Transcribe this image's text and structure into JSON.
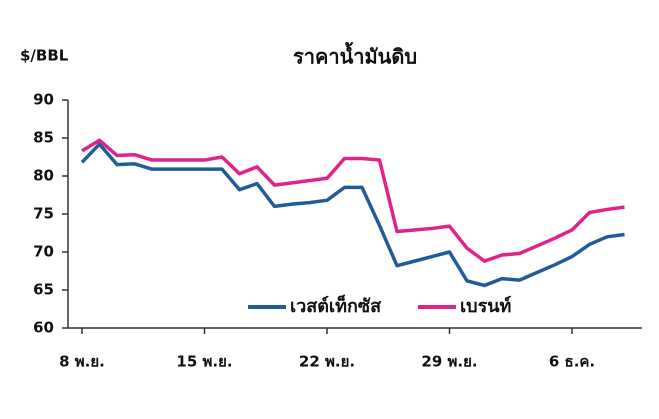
{
  "chart_data": {
    "type": "line",
    "title": "ราคาน้ำมันดิบ",
    "y_label": "$/BBL",
    "categories": [
      "8 พ.ย.",
      null,
      null,
      null,
      null,
      null,
      null,
      "15 พ.ย.",
      null,
      null,
      null,
      null,
      null,
      null,
      "22 พ.ย.",
      null,
      null,
      null,
      null,
      null,
      null,
      "29 พ.ย.",
      null,
      null,
      null,
      null,
      null,
      null,
      "6 ธ.ค.",
      null,
      null,
      null
    ],
    "series": [
      {
        "name": "เวสต์เท็กซัส",
        "color": "#1f5c99",
        "values": [
          81.8,
          84.2,
          81.5,
          81.6,
          80.9,
          80.9,
          80.9,
          80.9,
          80.9,
          78.2,
          79.0,
          76.0,
          76.3,
          76.5,
          76.8,
          78.5,
          78.5,
          73.5,
          68.2,
          68.8,
          69.4,
          70.0,
          66.2,
          65.6,
          66.5,
          66.3,
          67.3,
          68.3,
          69.4,
          71.0,
          72.0,
          72.3
        ]
      },
      {
        "name": "เบรนท์",
        "color": "#e0228c",
        "values": [
          83.3,
          84.7,
          82.7,
          82.8,
          82.1,
          82.1,
          82.1,
          82.1,
          82.5,
          80.3,
          81.2,
          78.8,
          79.1,
          79.4,
          79.7,
          82.3,
          82.3,
          82.1,
          72.7,
          72.9,
          73.1,
          73.4,
          70.5,
          68.8,
          69.6,
          69.8,
          70.8,
          71.8,
          72.9,
          75.2,
          75.6,
          75.9
        ]
      }
    ],
    "ylim": [
      60,
      90
    ],
    "yticks": [
      60,
      65,
      70,
      75,
      80,
      85,
      90
    ],
    "legend": "bottom"
  }
}
